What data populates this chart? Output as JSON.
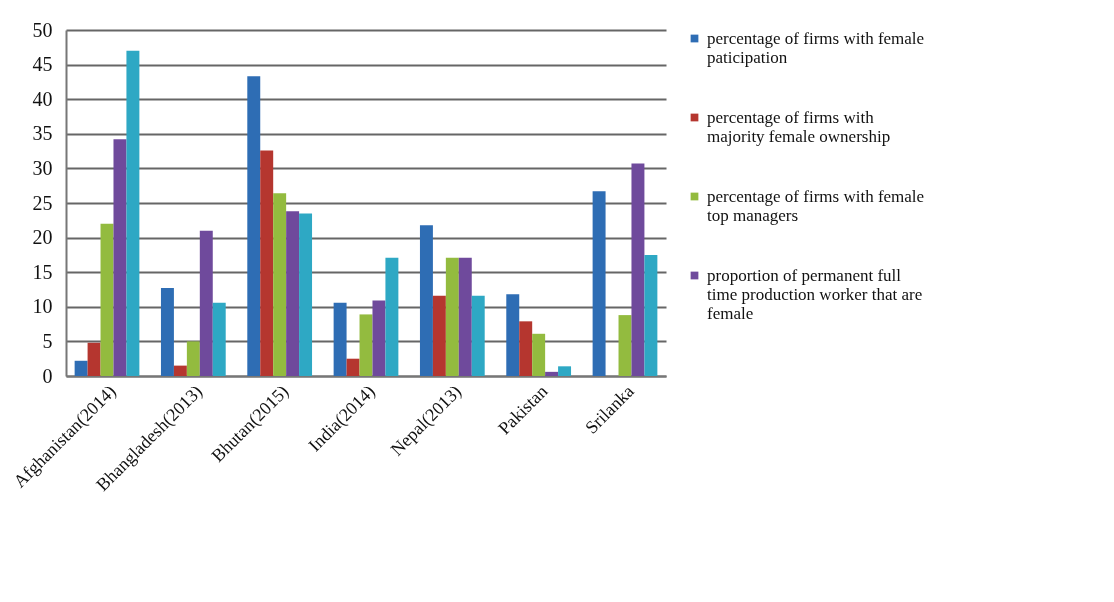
{
  "chart_data": {
    "type": "bar",
    "categories": [
      "Afghanistan(2014)",
      "Bhangladesh(2013)",
      "Bhutan(2015)",
      "India(2014)",
      "Nepal(2013)",
      "Pakistan",
      "Srilanka"
    ],
    "series": [
      {
        "name": "percentage of firms with female paticipation",
        "color": "#2e6db4",
        "values": [
          2.2,
          12.7,
          43.3,
          10.6,
          21.8,
          11.8,
          26.7
        ]
      },
      {
        "name": "percentage of firms with majority female ownership",
        "color": "#b5362f",
        "values": [
          4.8,
          1.5,
          32.6,
          2.5,
          11.6,
          7.9,
          null
        ]
      },
      {
        "name": "percentage of firms with female top managers",
        "color": "#93bb3f",
        "values": [
          22,
          5,
          26.4,
          8.9,
          17.1,
          6.1,
          8.8
        ]
      },
      {
        "name": "proportion of permanent full time production worker that are female",
        "color": "#6f4a9c",
        "values": [
          34.2,
          21,
          23.8,
          10.9,
          17.1,
          0.6,
          30.7
        ]
      },
      {
        "color": "#2ea8c4",
        "values": [
          47,
          10.6,
          23.5,
          17.1,
          11.6,
          1.4,
          17.5
        ]
      }
    ],
    "ylim": [
      0,
      50
    ],
    "yticks": [
      0,
      5,
      10,
      15,
      20,
      25,
      30,
      35,
      40,
      45,
      50
    ],
    "grid": "y",
    "legend": "right"
  }
}
